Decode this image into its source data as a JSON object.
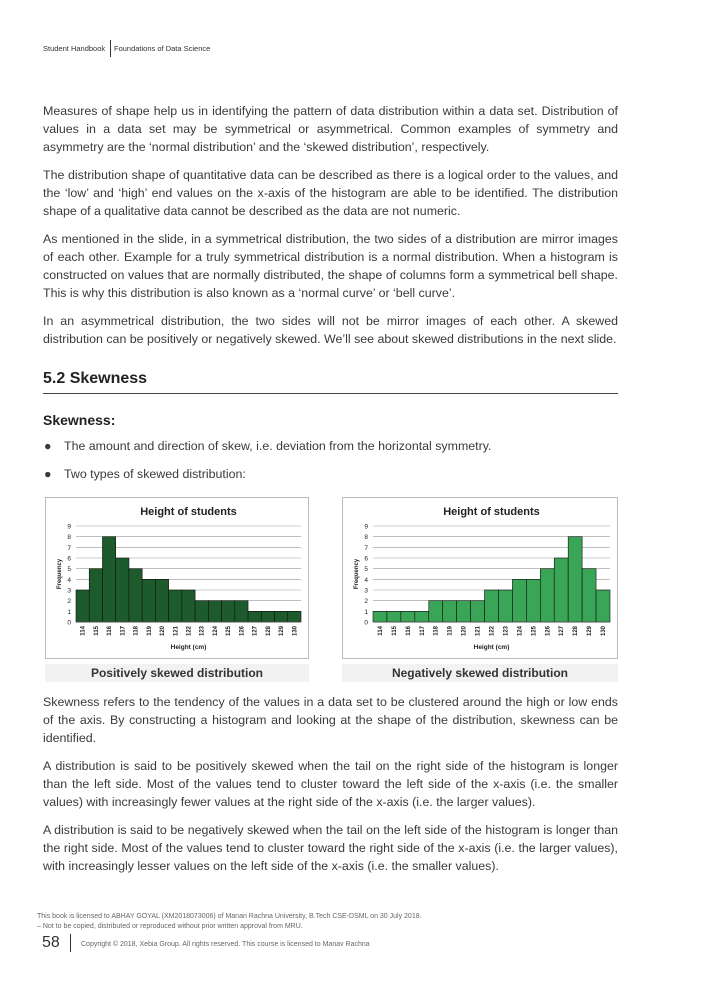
{
  "header": {
    "left": "Student Handbook",
    "right": "Foundations of Data Science"
  },
  "paragraphs": [
    "Measures of shape help us in identifying the pattern of data distribution within a data set. Distribution of values in a data set may be symmetrical or asymmetrical. Common examples of symmetry and asymmetry are the ‘normal distribution’ and the ‘skewed distribution’, respectively.",
    "The distribution shape of quantitative data can be described as there is a logical order to the values, and the ‘low’ and ‘high’ end values on the x-axis of the histogram are able to be identified.  The distribution shape of a qualitative data cannot be described as the data are not numeric.",
    "As mentioned in the slide, in a symmetrical distribution, the two sides of a distribution are mirror images of each other. Example for a truly symmetrical distribution is a normal distribution. When a histogram is constructed on values that are normally distributed, the shape of columns form a symmetrical bell shape. This is why this distribution is also known as a ‘normal curve’ or ‘bell curve’.",
    "In an asymmetrical distribution, the two sides will not be mirror images of each other. A skewed distribution can be positively or negatively skewed. We’ll see about skewed distributions in the next slide."
  ],
  "section_title": "5.2 Skewness",
  "subsection_title": "Skewness:",
  "bullets": [
    "The amount and direction of skew, i.e. deviation from the horizontal symmetry.",
    "Two types of skewed distribution:"
  ],
  "captions": [
    "Positively skewed distribution",
    "Negatively skewed distribution"
  ],
  "paragraphs_after": [
    "Skewness refers to the tendency of the values in a data set to be clustered around the high or low ends of the axis. By constructing a histogram and looking at the shape of the distribution, skewness can be identified.",
    "A distribution is said to be positively skewed when the tail on the right side of the histogram is longer than the left side. Most of the values tend to cluster toward the left side of the x-axis (i.e. the smaller values) with increasingly fewer values at the right side of the x-axis (i.e. the larger values).",
    "A distribution is said to be negatively skewed when the tail on the left side of the histogram is longer than the right side. Most of the values tend to cluster toward the right side of the x-axis (i.e. the larger values), with increasingly lesser values on the left side of the x-axis (i.e. the smaller values)."
  ],
  "footer": {
    "license": [
      "This book is licensed to ABHAY GOYAL (XM2018073006) of Manan Rachna University, B.Tech CSE-DSML on 30 July 2018.",
      "– Not to be copied, distributed or reproduced without prior written approval from MRU."
    ],
    "page_number": "58",
    "copyright": "Copyright © 2018, Xebia Group. All rights reserved. This course is licensed to Manav Rachna"
  },
  "chart_data": [
    {
      "type": "bar",
      "title": "Height of students",
      "x_label": "Height (cm)",
      "y_label": "Frequency",
      "categories": [
        "114",
        "115",
        "116",
        "117",
        "118",
        "119",
        "120",
        "121",
        "122",
        "123",
        "124",
        "125",
        "126",
        "127",
        "128",
        "129",
        "130"
      ],
      "values": [
        3,
        5,
        8,
        6,
        5,
        4,
        4,
        3,
        3,
        2,
        2,
        2,
        2,
        1,
        1,
        1,
        1
      ],
      "color": "#1e5b2c",
      "ylim": [
        0,
        9
      ],
      "yticks": [
        0,
        1,
        2,
        3,
        4,
        5,
        6,
        7,
        8,
        9
      ],
      "grid": true
    },
    {
      "type": "bar",
      "title": "Height of students",
      "x_label": "Height (cm)",
      "y_label": "Frequency",
      "categories": [
        "114",
        "115",
        "116",
        "117",
        "118",
        "119",
        "120",
        "121",
        "122",
        "123",
        "124",
        "125",
        "126",
        "127",
        "128",
        "129",
        "130"
      ],
      "values": [
        1,
        1,
        1,
        1,
        2,
        2,
        2,
        2,
        3,
        3,
        4,
        4,
        5,
        6,
        8,
        5,
        3
      ],
      "color": "#3aa556",
      "ylim": [
        0,
        9
      ],
      "yticks": [
        0,
        1,
        2,
        3,
        4,
        5,
        6,
        7,
        8,
        9
      ],
      "grid": true
    }
  ]
}
